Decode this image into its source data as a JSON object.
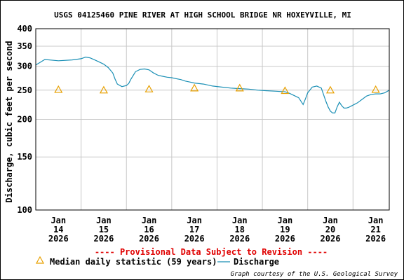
{
  "chart_data": {
    "type": "line",
    "title": "USGS 04125460 PINE RIVER AT HIGH SCHOOL BRIDGE NR HOXEYVILLE, MI",
    "ylabel": "Discharge, cubic feet per second",
    "y_scale": "log",
    "ylim": [
      100,
      400
    ],
    "y_ticks": [
      "400",
      "350",
      "300",
      "250",
      "200",
      "150",
      "100"
    ],
    "y_tick_values": [
      400,
      350,
      300,
      250,
      200,
      150,
      100
    ],
    "x_range": [
      13.5,
      21.3
    ],
    "x_ticks": [
      {
        "day": 14,
        "lines": [
          "Jan",
          "14",
          "2026"
        ]
      },
      {
        "day": 15,
        "lines": [
          "Jan",
          "15",
          "2026"
        ]
      },
      {
        "day": 16,
        "lines": [
          "Jan",
          "16",
          "2026"
        ]
      },
      {
        "day": 17,
        "lines": [
          "Jan",
          "17",
          "2026"
        ]
      },
      {
        "day": 18,
        "lines": [
          "Jan",
          "18",
          "2026"
        ]
      },
      {
        "day": 19,
        "lines": [
          "Jan",
          "19",
          "2026"
        ]
      },
      {
        "day": 20,
        "lines": [
          "Jan",
          "20",
          "2026"
        ]
      },
      {
        "day": 21,
        "lines": [
          "Jan",
          "21",
          "2026"
        ]
      }
    ],
    "grid": true,
    "colors": {
      "discharge": "#1a8fb5",
      "median": "#e8a000",
      "provisional": "#e00000"
    },
    "series": [
      {
        "name": "Discharge",
        "x": [
          13.5,
          13.7,
          14.0,
          14.3,
          14.5,
          14.6,
          14.7,
          14.8,
          14.9,
          15.0,
          15.1,
          15.2,
          15.25,
          15.3,
          15.4,
          15.5,
          15.55,
          15.6,
          15.7,
          15.8,
          15.9,
          16.0,
          16.1,
          16.2,
          16.3,
          16.4,
          16.5,
          16.6,
          16.7,
          16.8,
          16.9,
          17.0,
          17.2,
          17.4,
          17.6,
          17.8,
          18.0,
          18.2,
          18.4,
          18.6,
          18.8,
          19.0,
          19.1,
          19.2,
          19.3,
          19.35,
          19.4,
          19.45,
          19.5,
          19.6,
          19.7,
          19.8,
          19.9,
          19.95,
          20.0,
          20.05,
          20.1,
          20.15,
          20.2,
          20.25,
          20.3,
          20.35,
          20.4,
          20.45,
          20.5,
          20.6,
          20.7,
          20.8,
          20.9,
          21.0,
          21.1,
          21.2,
          21.3
        ],
        "y": [
          303,
          316,
          313,
          315,
          318,
          322,
          320,
          315,
          310,
          305,
          297,
          285,
          272,
          262,
          257,
          259,
          263,
          272,
          288,
          293,
          294,
          292,
          285,
          280,
          278,
          276,
          275,
          273,
          271,
          268,
          266,
          264,
          262,
          258,
          256,
          254,
          253,
          252,
          250,
          249,
          248,
          247,
          244,
          240,
          236,
          230,
          224,
          234,
          245,
          256,
          258,
          254,
          230,
          220,
          213,
          210,
          210,
          220,
          228,
          222,
          218,
          218,
          219,
          221,
          223,
          227,
          233,
          239,
          242,
          243,
          243,
          245,
          250
        ]
      },
      {
        "name": "Median daily statistic (59 years)",
        "x": [
          14,
          15,
          16,
          17,
          18,
          19,
          20,
          21
        ],
        "y": [
          251,
          250,
          252,
          254,
          254,
          249,
          250,
          251
        ]
      }
    ],
    "annotations": {
      "provisional": "---- Provisional Data Subject to Revision ----",
      "credit": "Graph courtesy of the U.S. Geological Survey"
    }
  }
}
